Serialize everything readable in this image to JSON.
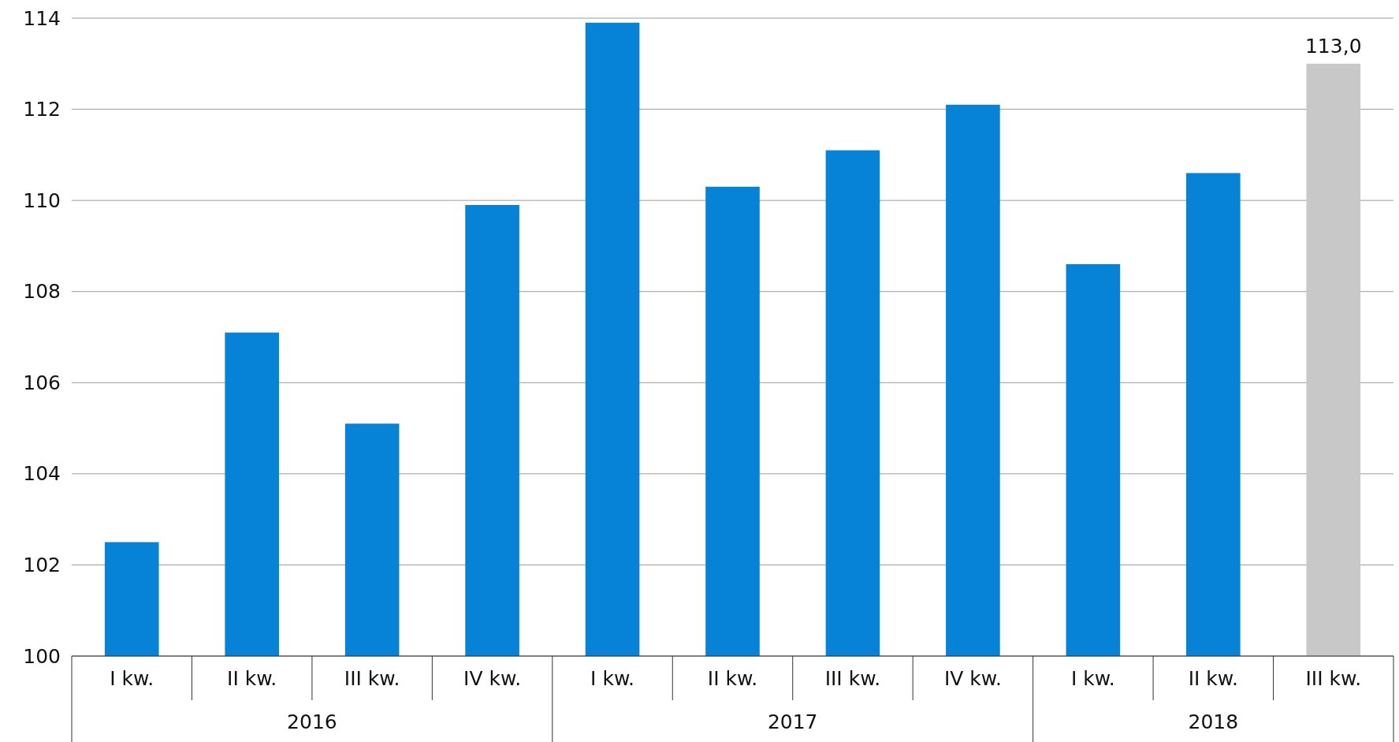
{
  "chart_data": {
    "type": "bar",
    "categories": [
      "I kw.",
      "II kw.",
      "III kw.",
      "IV kw.",
      "I kw.",
      "II kw.",
      "III kw.",
      "IV kw.",
      "I kw.",
      "II kw.",
      "III kw."
    ],
    "values": [
      102.5,
      107.1,
      105.1,
      109.9,
      113.9,
      110.3,
      111.1,
      112.1,
      108.6,
      110.6,
      113.0
    ],
    "colors": [
      "#0683d6",
      "#0683d6",
      "#0683d6",
      "#0683d6",
      "#0683d6",
      "#0683d6",
      "#0683d6",
      "#0683d6",
      "#0683d6",
      "#0683d6",
      "#c8c8c8"
    ],
    "value_labels": [
      null,
      null,
      null,
      null,
      null,
      null,
      null,
      null,
      null,
      null,
      "113,0"
    ],
    "annotations": [
      "2016",
      "2017",
      "2018"
    ],
    "ylim": [
      100,
      114
    ],
    "yticks": [
      100,
      102,
      104,
      106,
      108,
      110,
      112,
      114
    ],
    "grid": "y"
  }
}
